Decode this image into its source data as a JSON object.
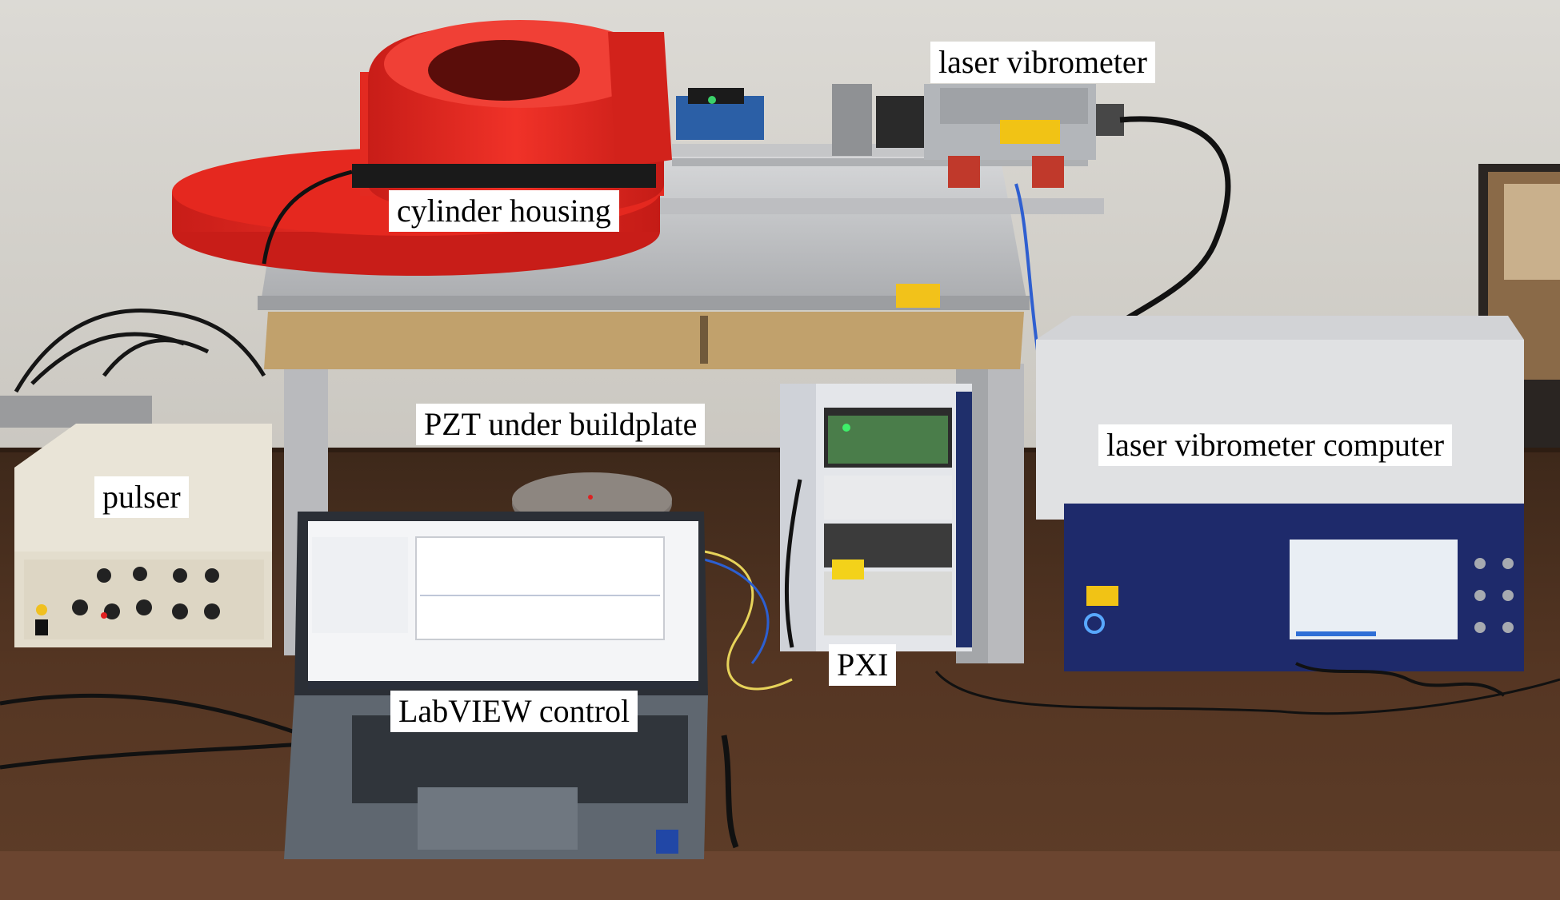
{
  "labels": {
    "laser_vibrometer": "laser vibrometer",
    "cylinder_housing": "cylinder housing",
    "pzt": "PZT under buildplate",
    "laser_vibrometer_computer": "laser vibrometer computer",
    "pulser": "pulser",
    "pxi": "PXI",
    "labview": "LabVIEW control"
  },
  "colors": {
    "wall": "#d8d6d1",
    "desk": "#4a2f1f",
    "housing_red": "#ee2a22",
    "vibrometer_computer_blue": "#1e2a6b",
    "aluminum": "#c8c9cb",
    "pulser_body": "#ece8dc"
  }
}
